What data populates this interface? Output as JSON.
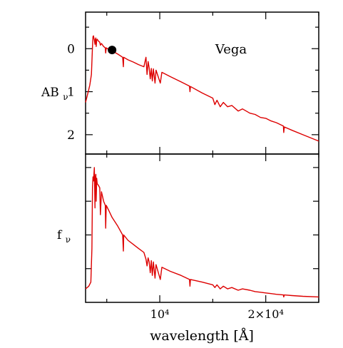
{
  "chart_data": [
    {
      "type": "line",
      "panel": "top",
      "title": "Vega",
      "ylabel": "AB",
      "ylabel_sub": "ν",
      "y_inverted": true,
      "ylim": [
        2.45,
        -0.85
      ],
      "xlim": [
        3000,
        25000
      ],
      "y_ticks": [
        0,
        1,
        2
      ],
      "y_tick_labels": [
        "0",
        "1",
        "2"
      ],
      "marker": {
        "x": 5500,
        "y": 0.03
      },
      "series": [
        {
          "color": "#dd0000",
          "points": [
            [
              3000,
              1.25
            ],
            [
              3200,
              1.05
            ],
            [
              3400,
              0.85
            ],
            [
              3550,
              0.6
            ],
            [
              3650,
              -0.05
            ],
            [
              3700,
              -0.28
            ],
            [
              3750,
              -0.3
            ],
            [
              3830,
              -0.2
            ],
            [
              3890,
              -0.1
            ],
            [
              3900,
              -0.2
            ],
            [
              3970,
              -0.25
            ],
            [
              4000,
              -0.05
            ],
            [
              4050,
              -0.2
            ],
            [
              4100,
              -0.22
            ],
            [
              4200,
              -0.18
            ],
            [
              4340,
              -0.15
            ],
            [
              4400,
              -0.08
            ],
            [
              4500,
              -0.12
            ],
            [
              4700,
              -0.05
            ],
            [
              4860,
              -0.02
            ],
            [
              4900,
              0.1
            ],
            [
              4950,
              -0.02
            ],
            [
              5200,
              0.02
            ],
            [
              5500,
              0.05
            ],
            [
              6000,
              0.12
            ],
            [
              6500,
              0.2
            ],
            [
              6563,
              0.42
            ],
            [
              6600,
              0.2
            ],
            [
              7000,
              0.26
            ],
            [
              7500,
              0.31
            ],
            [
              8000,
              0.37
            ],
            [
              8500,
              0.42
            ],
            [
              8700,
              0.2
            ],
            [
              8800,
              0.6
            ],
            [
              8900,
              0.3
            ],
            [
              9000,
              0.45
            ],
            [
              9100,
              0.7
            ],
            [
              9200,
              0.46
            ],
            [
              9300,
              0.75
            ],
            [
              9400,
              0.47
            ],
            [
              9550,
              0.8
            ],
            [
              9650,
              0.5
            ],
            [
              10050,
              0.8
            ],
            [
              10200,
              0.55
            ],
            [
              11000,
              0.65
            ],
            [
              12000,
              0.77
            ],
            [
              12800,
              0.87
            ],
            [
              12850,
              1.0
            ],
            [
              12900,
              0.88
            ],
            [
              14000,
              1.03
            ],
            [
              15000,
              1.15
            ],
            [
              15200,
              1.3
            ],
            [
              15400,
              1.2
            ],
            [
              15700,
              1.35
            ],
            [
              16000,
              1.25
            ],
            [
              16400,
              1.35
            ],
            [
              16800,
              1.32
            ],
            [
              17400,
              1.45
            ],
            [
              17800,
              1.4
            ],
            [
              18500,
              1.5
            ],
            [
              19000,
              1.53
            ],
            [
              19500,
              1.6
            ],
            [
              20000,
              1.62
            ],
            [
              20500,
              1.68
            ],
            [
              21000,
              1.72
            ],
            [
              21660,
              1.8
            ],
            [
              21700,
              1.95
            ],
            [
              21750,
              1.82
            ],
            [
              22500,
              1.9
            ],
            [
              23500,
              2.0
            ],
            [
              25000,
              2.15
            ]
          ]
        }
      ]
    },
    {
      "type": "line",
      "panel": "bottom",
      "ylabel": "f",
      "ylabel_sub": "ν",
      "xlabel": "wavelength [Å]",
      "xlim": [
        3000,
        25000
      ],
      "ylim": [
        0,
        1.1
      ],
      "x_ticks": [
        10000,
        20000
      ],
      "x_tick_labels": [
        "10⁴",
        "2×10⁴"
      ],
      "series": [
        {
          "color": "#dd0000",
          "points": [
            [
              3000,
              0.1
            ],
            [
              3300,
              0.12
            ],
            [
              3500,
              0.15
            ],
            [
              3600,
              0.4
            ],
            [
              3650,
              0.85
            ],
            [
              3700,
              0.93
            ],
            [
              3750,
              0.9
            ],
            [
              3830,
              1.0
            ],
            [
              3890,
              0.7
            ],
            [
              3900,
              0.92
            ],
            [
              3970,
              0.95
            ],
            [
              4000,
              0.75
            ],
            [
              4050,
              0.92
            ],
            [
              4100,
              0.88
            ],
            [
              4200,
              0.87
            ],
            [
              4340,
              0.85
            ],
            [
              4400,
              0.65
            ],
            [
              4500,
              0.82
            ],
            [
              4700,
              0.75
            ],
            [
              4860,
              0.72
            ],
            [
              4900,
              0.55
            ],
            [
              4950,
              0.72
            ],
            [
              5200,
              0.68
            ],
            [
              5500,
              0.63
            ],
            [
              6000,
              0.57
            ],
            [
              6500,
              0.5
            ],
            [
              6563,
              0.38
            ],
            [
              6600,
              0.5
            ],
            [
              7000,
              0.46
            ],
            [
              7500,
              0.43
            ],
            [
              8000,
              0.4
            ],
            [
              8500,
              0.37
            ],
            [
              8700,
              0.32
            ],
            [
              8800,
              0.27
            ],
            [
              8900,
              0.33
            ],
            [
              9000,
              0.3
            ],
            [
              9100,
              0.22
            ],
            [
              9200,
              0.31
            ],
            [
              9300,
              0.2
            ],
            [
              9400,
              0.3
            ],
            [
              9550,
              0.18
            ],
            [
              9650,
              0.28
            ],
            [
              10050,
              0.17
            ],
            [
              10200,
              0.26
            ],
            [
              11000,
              0.23
            ],
            [
              12000,
              0.2
            ],
            [
              12800,
              0.17
            ],
            [
              12850,
              0.12
            ],
            [
              12900,
              0.17
            ],
            [
              14000,
              0.15
            ],
            [
              15000,
              0.13
            ],
            [
              15200,
              0.11
            ],
            [
              15400,
              0.13
            ],
            [
              15700,
              0.1
            ],
            [
              16000,
              0.12
            ],
            [
              16400,
              0.1
            ],
            [
              16800,
              0.11
            ],
            [
              17400,
              0.09
            ],
            [
              17800,
              0.1
            ],
            [
              18500,
              0.09
            ],
            [
              19000,
              0.08
            ],
            [
              19500,
              0.075
            ],
            [
              20000,
              0.07
            ],
            [
              20500,
              0.065
            ],
            [
              21000,
              0.06
            ],
            [
              21660,
              0.055
            ],
            [
              21700,
              0.04
            ],
            [
              21750,
              0.055
            ],
            [
              22500,
              0.05
            ],
            [
              23500,
              0.045
            ],
            [
              25000,
              0.04
            ]
          ]
        }
      ]
    }
  ]
}
